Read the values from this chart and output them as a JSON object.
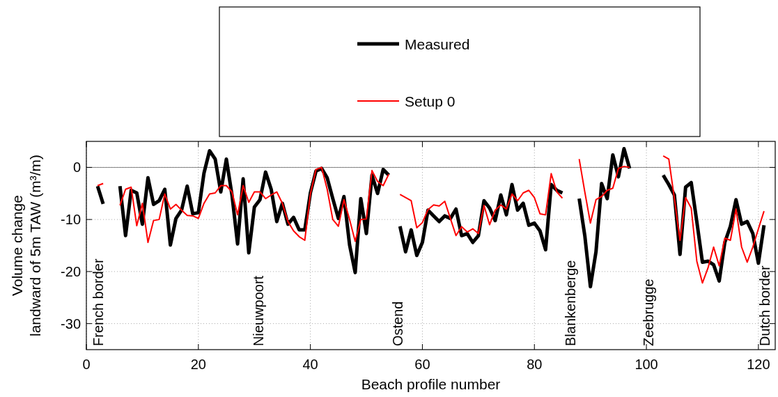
{
  "chart_data": {
    "type": "line",
    "xlabel": "Beach profile number",
    "ylabel": "Volume change\nlandward of 5m TAW (m³/m)",
    "x": [
      2,
      3,
      4,
      5,
      6,
      7,
      8,
      9,
      10,
      11,
      12,
      13,
      14,
      15,
      16,
      17,
      18,
      19,
      20,
      21,
      22,
      23,
      24,
      25,
      26,
      27,
      28,
      29,
      30,
      31,
      32,
      33,
      34,
      35,
      36,
      37,
      38,
      39,
      40,
      41,
      42,
      43,
      44,
      45,
      46,
      47,
      48,
      49,
      50,
      51,
      52,
      53,
      54,
      55,
      56,
      57,
      58,
      59,
      60,
      61,
      62,
      63,
      64,
      65,
      66,
      67,
      68,
      69,
      70,
      71,
      72,
      73,
      74,
      75,
      76,
      77,
      78,
      79,
      80,
      81,
      82,
      83,
      84,
      85,
      86,
      87,
      88,
      89,
      90,
      91,
      92,
      93,
      94,
      95,
      96,
      97,
      98,
      99,
      100,
      101,
      102,
      103,
      104,
      105,
      106,
      107,
      108,
      109,
      110,
      111,
      112,
      113,
      114,
      115,
      116,
      117,
      118,
      119,
      120,
      121
    ],
    "series": [
      {
        "name": "Measured",
        "color": "#000000",
        "values": [
          -3.6,
          -7.0,
          null,
          null,
          -3.6,
          -13.1,
          -4.4,
          -4.9,
          -10.9,
          -2.0,
          -7.1,
          -6.4,
          -4.2,
          -14.9,
          -9.8,
          -8.2,
          -3.6,
          -8.9,
          -8.7,
          -1.1,
          3.2,
          1.6,
          -4.7,
          1.6,
          -5.3,
          -14.7,
          -2.2,
          -16.4,
          -7.6,
          -6.2,
          -0.9,
          -4.2,
          -10.4,
          -6.9,
          -10.9,
          -9.6,
          -12.0,
          -12.0,
          -4.9,
          -0.7,
          -0.2,
          -2.0,
          -6.0,
          -9.8,
          -5.6,
          -14.9,
          -20.2,
          -6.0,
          -12.7,
          -1.5,
          -5.0,
          -0.4,
          -1.5,
          null,
          -11.3,
          -16.2,
          -12.0,
          -16.9,
          -14.4,
          -8.2,
          -9.3,
          -10.4,
          -9.3,
          -9.8,
          -8.0,
          -13.1,
          -12.7,
          -14.4,
          -13.1,
          -6.4,
          -7.8,
          -10.2,
          -5.3,
          -9.1,
          -3.3,
          -8.2,
          -6.9,
          -11.1,
          -10.7,
          -12.2,
          -15.8,
          -3.3,
          -4.4,
          -4.9,
          null,
          null,
          -6.0,
          -13.1,
          -22.9,
          -16.2,
          -3.1,
          -6.0,
          2.4,
          -1.8,
          3.6,
          -0.2,
          null,
          null,
          null,
          null,
          null,
          -1.5,
          -3.3,
          -5.3,
          -16.7,
          -3.8,
          -2.9,
          -10.4,
          -18.2,
          -18.0,
          -18.7,
          -21.8,
          -14.4,
          -11.3,
          -6.2,
          -10.9,
          -10.4,
          -12.7,
          -18.4,
          -11.1
        ]
      },
      {
        "name": "Setup 0",
        "color": "#ff0000",
        "values": [
          -3.5,
          -3.1,
          null,
          null,
          -7.3,
          -4.2,
          -3.8,
          -11.2,
          -6.9,
          -14.4,
          -10.2,
          -10.0,
          -5.1,
          -8.0,
          -7.1,
          -8.2,
          -9.2,
          -9.3,
          -9.8,
          -6.9,
          -5.1,
          -4.9,
          -3.5,
          -3.5,
          -4.7,
          -9.1,
          -3.5,
          -6.7,
          -4.7,
          -4.7,
          -6.0,
          -5.3,
          -4.7,
          -6.9,
          -10.4,
          -12.2,
          -13.3,
          -14.0,
          -5.1,
          -0.4,
          0,
          -4.2,
          -10.0,
          -11.3,
          -6.2,
          -10.0,
          -14.2,
          -10.0,
          -9.9,
          -0.6,
          -2.7,
          -3.5,
          -1.3,
          null,
          -5.2,
          -5.8,
          -6.4,
          -11.6,
          -10.6,
          -8.1,
          -7.2,
          -7.4,
          -6.5,
          -9.8,
          -13.1,
          -11.4,
          -12.4,
          -11.8,
          -12.7,
          -7.3,
          -11.0,
          -8.2,
          -7.2,
          -8.0,
          -5.1,
          -6.4,
          -4.9,
          -4.4,
          -5.8,
          -8.9,
          -9.1,
          -1.2,
          -4.7,
          -5.9,
          null,
          null,
          1.6,
          -4.7,
          -10.7,
          -6.2,
          -5.6,
          -4.4,
          -4.0,
          -0.2,
          0.2,
          0,
          null,
          null,
          null,
          null,
          null,
          2.2,
          1.6,
          -6.0,
          -14.0,
          -5.8,
          -7.8,
          -18.0,
          -22.2,
          -19.3,
          -15.3,
          -18.9,
          -13.6,
          -14.0,
          -8.0,
          -15.3,
          -18.2,
          -15.3,
          -11.8,
          -8.4
        ]
      }
    ],
    "xlim": [
      0,
      123
    ],
    "ylim": [
      -35,
      5
    ],
    "xticks": [
      0,
      20,
      40,
      60,
      80,
      100,
      120
    ],
    "yticks": [
      -30,
      -20,
      -10,
      0
    ],
    "grid": true,
    "legend": "top",
    "ref_lines": [
      {
        "axis": "y",
        "value": 0,
        "color": "#808080"
      }
    ],
    "annotations": [
      "French border",
      "Nieuwpoort",
      "Ostend",
      "Blankenberge",
      "Zeebrugge",
      "Dutch border"
    ]
  }
}
